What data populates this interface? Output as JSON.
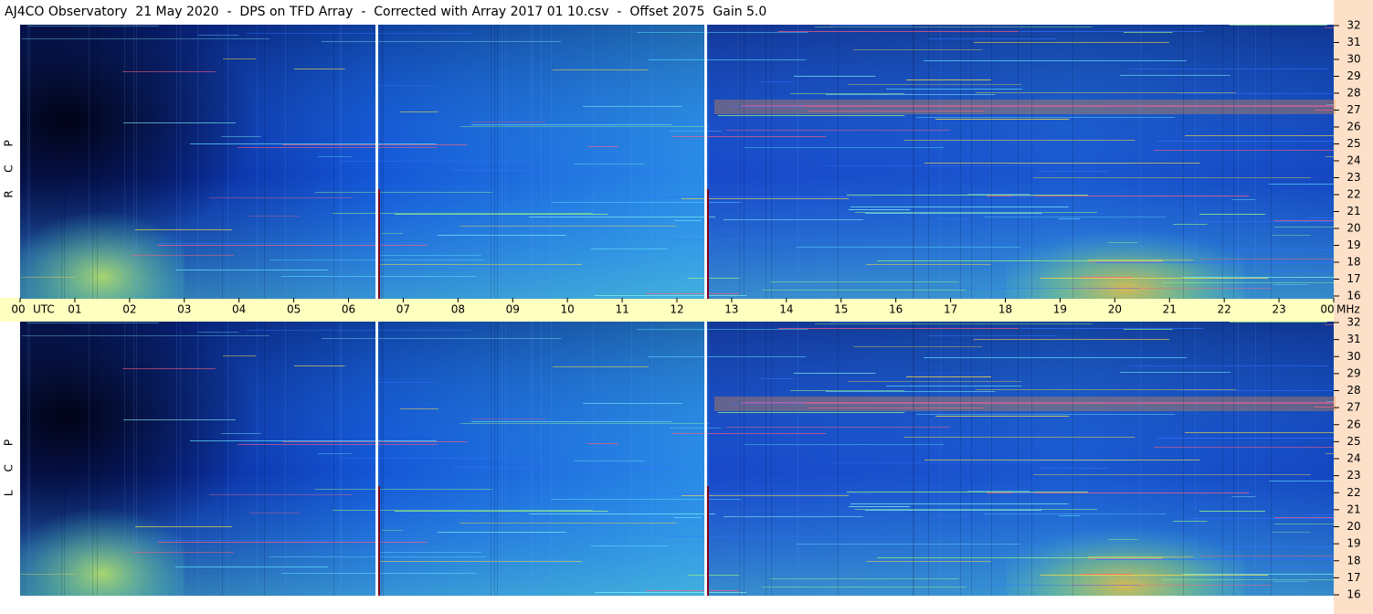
{
  "header": {
    "title": "AJ4CO Observatory  21 May 2020  -  DPS on TFD Array  -  Corrected with Array 2017 01 10.csv  -  Offset 2075  Gain 5.0"
  },
  "time_axis": {
    "hours": [
      "00",
      "01",
      "02",
      "03",
      "04",
      "05",
      "06",
      "07",
      "08",
      "09",
      "10",
      "11",
      "12",
      "13",
      "14",
      "15",
      "16",
      "17",
      "18",
      "19",
      "20",
      "21",
      "22",
      "23",
      "00"
    ],
    "zone": "UTC",
    "unit": "MHz"
  },
  "frequency_labels": [
    32,
    31,
    30,
    29,
    28,
    27,
    26,
    25,
    24,
    23,
    22,
    21,
    20,
    19,
    18,
    17,
    16
  ],
  "panels": [
    {
      "polarization": "RCP"
    },
    {
      "polarization": "LCP"
    }
  ]
}
